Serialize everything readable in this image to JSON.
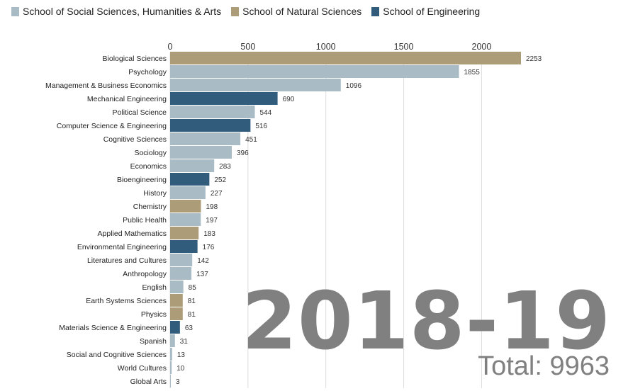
{
  "legend": [
    {
      "label": "School of Social Sciences, Humanities & Arts",
      "color": "#a9bcc6"
    },
    {
      "label": "School of Natural Sciences",
      "color": "#ad9c78"
    },
    {
      "label": "School of Engineering",
      "color": "#315c7c"
    }
  ],
  "year_label": "2018-19",
  "total_label": "Total: 9963",
  "chart_data": {
    "type": "bar",
    "orientation": "horizontal",
    "xlim": [
      0,
      2253
    ],
    "xticks": [
      0,
      500,
      1000,
      1500,
      2000
    ],
    "grid": true,
    "legend_position": "top-left",
    "categories": [
      "Biological Sciences",
      "Psychology",
      "Management & Business Economics",
      "Mechanical Engineering",
      "Political Science",
      "Computer Science & Engineering",
      "Cognitive Sciences",
      "Sociology",
      "Economics",
      "Bioengineering",
      "History",
      "Chemistry",
      "Public Health",
      "Applied Mathematics",
      "Environmental Engineering",
      "Literatures and Cultures",
      "Anthropology",
      "English",
      "Earth Systems Sciences",
      "Physics",
      "Materials Science & Engineering",
      "Spanish",
      "Social and Cognitive Sciences",
      "World Cultures",
      "Global Arts"
    ],
    "values": [
      2253,
      1855,
      1096,
      690,
      544,
      516,
      451,
      396,
      283,
      252,
      227,
      198,
      197,
      183,
      176,
      142,
      137,
      85,
      81,
      81,
      63,
      31,
      13,
      10,
      3
    ],
    "groups": [
      "School of Natural Sciences",
      "School of Social Sciences, Humanities & Arts",
      "School of Social Sciences, Humanities & Arts",
      "School of Engineering",
      "School of Social Sciences, Humanities & Arts",
      "School of Engineering",
      "School of Social Sciences, Humanities & Arts",
      "School of Social Sciences, Humanities & Arts",
      "School of Social Sciences, Humanities & Arts",
      "School of Engineering",
      "School of Social Sciences, Humanities & Arts",
      "School of Natural Sciences",
      "School of Social Sciences, Humanities & Arts",
      "School of Natural Sciences",
      "School of Engineering",
      "School of Social Sciences, Humanities & Arts",
      "School of Social Sciences, Humanities & Arts",
      "School of Social Sciences, Humanities & Arts",
      "School of Natural Sciences",
      "School of Natural Sciences",
      "School of Engineering",
      "School of Social Sciences, Humanities & Arts",
      "School of Social Sciences, Humanities & Arts",
      "School of Social Sciences, Humanities & Arts",
      "School of Social Sciences, Humanities & Arts"
    ]
  }
}
